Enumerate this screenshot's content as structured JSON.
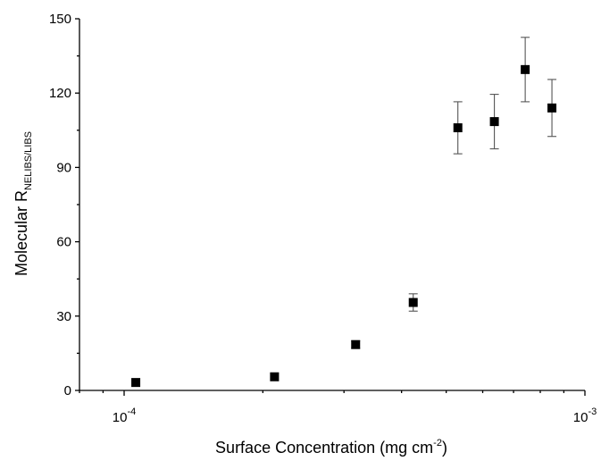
{
  "chart_data": {
    "type": "scatter",
    "xscale": "log",
    "xlabel": {
      "text": "Surface Concentration (mg cm",
      "sup": "-2",
      "tail": ")"
    },
    "ylabel": {
      "text": "Molecular R",
      "sub": "NELIBS/LIBS"
    },
    "xlim": [
      8e-05,
      0.001
    ],
    "ylim": [
      0,
      150
    ],
    "x_ticks": [
      {
        "value": 0.0001,
        "base": "10",
        "exp": "-4"
      },
      {
        "value": 0.001,
        "base": "10",
        "exp": "-3"
      }
    ],
    "y_ticks": [
      0,
      30,
      60,
      90,
      120,
      150
    ],
    "grid": false,
    "marker": "square",
    "color": "#000000",
    "series": [
      {
        "points": [
          {
            "x": 0.000106,
            "y": 3.2,
            "err": 0.5
          },
          {
            "x": 0.000212,
            "y": 5.5,
            "err": 0.5
          },
          {
            "x": 0.000318,
            "y": 18.5,
            "err": 1.5
          },
          {
            "x": 0.000424,
            "y": 35.5,
            "err": 3.5
          },
          {
            "x": 0.00053,
            "y": 106.0,
            "err": 10.5
          },
          {
            "x": 0.000636,
            "y": 108.5,
            "err": 11.0
          },
          {
            "x": 0.000742,
            "y": 129.5,
            "err": 13.0
          },
          {
            "x": 0.000848,
            "y": 114.0,
            "err": 11.5
          }
        ]
      }
    ]
  }
}
